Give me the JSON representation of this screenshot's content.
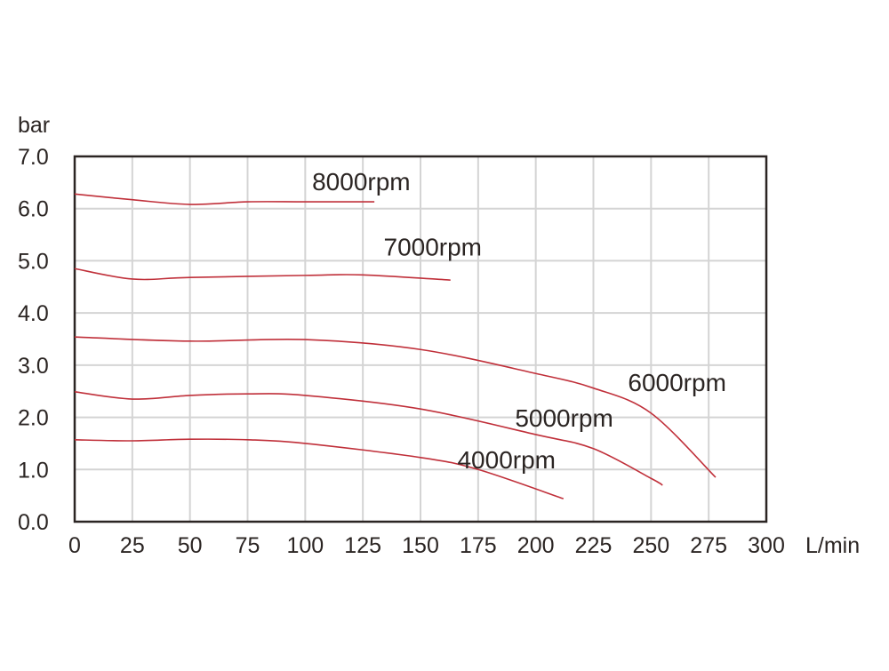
{
  "chart_data": {
    "type": "line",
    "title": "",
    "xlabel": "L/min",
    "ylabel": "bar",
    "xlim": [
      0,
      300
    ],
    "ylim": [
      0,
      7
    ],
    "grid": true,
    "x_ticks": [
      0,
      25,
      50,
      75,
      100,
      125,
      150,
      175,
      200,
      225,
      250,
      275,
      300
    ],
    "x_tick_labels": [
      "0",
      "25",
      "50",
      "75",
      "100",
      "125",
      "150",
      "175",
      "200",
      "225",
      "250",
      "275",
      "300"
    ],
    "y_ticks": [
      0,
      1,
      2,
      3,
      4,
      5,
      6,
      7
    ],
    "y_tick_labels": [
      "0.0",
      "1.0",
      "2.0",
      "3.0",
      "4.0",
      "5.0",
      "6.0",
      "7.0"
    ],
    "line_color": "#c0303a",
    "series": [
      {
        "name": "8000rpm",
        "label_pos": [
          103,
          6.35
        ],
        "x": [
          0,
          25,
          50,
          75,
          100,
          130
        ],
        "y": [
          6.28,
          6.17,
          6.08,
          6.13,
          6.13,
          6.13
        ]
      },
      {
        "name": "7000rpm",
        "label_pos": [
          134,
          5.1
        ],
        "x": [
          0,
          25,
          50,
          100,
          125,
          163
        ],
        "y": [
          4.85,
          4.65,
          4.68,
          4.72,
          4.73,
          4.63
        ]
      },
      {
        "name": "6000rpm",
        "label_pos": [
          240,
          2.5
        ],
        "x": [
          0,
          50,
          100,
          150,
          200,
          225,
          250,
          278
        ],
        "y": [
          3.54,
          3.46,
          3.49,
          3.3,
          2.84,
          2.56,
          2.08,
          0.85
        ]
      },
      {
        "name": "5000rpm",
        "label_pos": [
          191,
          1.82
        ],
        "x": [
          0,
          25,
          50,
          75,
          100,
          150,
          200,
          225,
          250,
          255
        ],
        "y": [
          2.49,
          2.35,
          2.42,
          2.45,
          2.42,
          2.16,
          1.67,
          1.4,
          0.83,
          0.7
        ]
      },
      {
        "name": "4000rpm",
        "label_pos": [
          166,
          1.02
        ],
        "x": [
          0,
          25,
          50,
          75,
          100,
          150,
          175,
          212
        ],
        "y": [
          1.57,
          1.55,
          1.58,
          1.57,
          1.5,
          1.23,
          1.0,
          0.44
        ]
      }
    ]
  }
}
